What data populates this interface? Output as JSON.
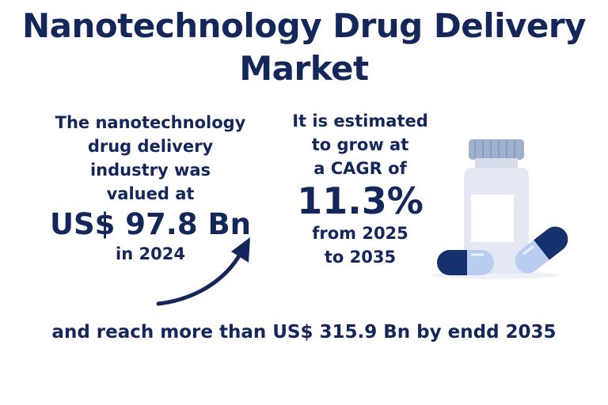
{
  "title": {
    "line1": "Nanotechnology Drug Delivery",
    "line2": "Market"
  },
  "left_stat": {
    "intro_lines": [
      "The nanotechnology",
      "drug delivery",
      "industry was",
      "valued at"
    ],
    "value": "US$ 97.8 Bn",
    "year": "in 2024"
  },
  "cagr_stat": {
    "intro_lines": [
      "It is estimated",
      "to grow at",
      "a CAGR of"
    ],
    "value": "11.3%",
    "range_lines": [
      "from 2025",
      "to 2035"
    ]
  },
  "footer": {
    "text": "and reach more than US$ 315.9 Bn by endd 2035"
  },
  "icons": [
    "growth-arrow-icon",
    "medicine-bottle-icon",
    "capsule-icon"
  ],
  "colors": {
    "primary": "#14275a",
    "bottle": "#e3e8f2",
    "bottle_cap": "#9fb0cc",
    "capsule_light": "#b9cdf0",
    "capsule_dark": "#17306e"
  }
}
